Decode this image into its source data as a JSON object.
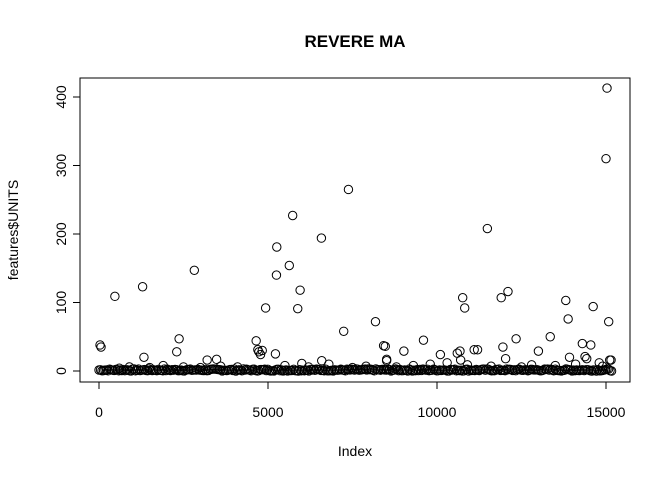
{
  "chart_data": {
    "type": "scatter",
    "title": "REVERE MA",
    "xlabel": "Index",
    "ylabel": "features$UNITS",
    "xlim": [
      0,
      15200
    ],
    "ylim": [
      0,
      420
    ],
    "x_ticks": [
      "0",
      "5000",
      "10000",
      "15000"
    ],
    "x_tick_values": [
      0,
      5000,
      10000,
      15000
    ],
    "y_ticks": [
      "0",
      "100",
      "200",
      "300",
      "400"
    ],
    "y_tick_values": [
      0,
      100,
      200,
      300,
      400
    ],
    "marker": "open-circle",
    "color": "#000000",
    "grid": false,
    "series": [
      {
        "points": [
          [
            30,
            38
          ],
          [
            60,
            35
          ],
          [
            470,
            109
          ],
          [
            1290,
            123
          ],
          [
            1330,
            20
          ],
          [
            2300,
            28
          ],
          [
            2370,
            47
          ],
          [
            2820,
            147
          ],
          [
            3200,
            16
          ],
          [
            3480,
            17
          ],
          [
            4650,
            44
          ],
          [
            4700,
            31
          ],
          [
            4730,
            28
          ],
          [
            4780,
            24
          ],
          [
            4830,
            30
          ],
          [
            4930,
            92
          ],
          [
            5220,
            25
          ],
          [
            5250,
            140
          ],
          [
            5260,
            181
          ],
          [
            5630,
            154
          ],
          [
            5730,
            227
          ],
          [
            5880,
            91
          ],
          [
            5950,
            118
          ],
          [
            6000,
            11
          ],
          [
            6580,
            194
          ],
          [
            6590,
            15
          ],
          [
            7240,
            58
          ],
          [
            7380,
            265
          ],
          [
            8180,
            72
          ],
          [
            8420,
            37
          ],
          [
            8470,
            36
          ],
          [
            8510,
            17
          ],
          [
            8510,
            15
          ],
          [
            9020,
            29
          ],
          [
            9600,
            45
          ],
          [
            10100,
            24
          ],
          [
            10600,
            26
          ],
          [
            10680,
            29
          ],
          [
            10700,
            16
          ],
          [
            10760,
            107
          ],
          [
            10820,
            92
          ],
          [
            11100,
            31
          ],
          [
            11200,
            31
          ],
          [
            11490,
            208
          ],
          [
            11900,
            107
          ],
          [
            11950,
            35
          ],
          [
            12030,
            18
          ],
          [
            12100,
            116
          ],
          [
            12340,
            47
          ],
          [
            13000,
            29
          ],
          [
            13350,
            50
          ],
          [
            13810,
            103
          ],
          [
            13880,
            76
          ],
          [
            13920,
            20
          ],
          [
            14300,
            40
          ],
          [
            14380,
            21
          ],
          [
            14430,
            18
          ],
          [
            14550,
            38
          ],
          [
            14620,
            94
          ],
          [
            14800,
            12
          ],
          [
            15000,
            310
          ],
          [
            15030,
            413
          ],
          [
            15080,
            72
          ],
          [
            15110,
            16
          ],
          [
            15150,
            16
          ],
          [
            600,
            4
          ],
          [
            900,
            6
          ],
          [
            1500,
            5
          ],
          [
            1900,
            8
          ],
          [
            2500,
            6
          ],
          [
            3000,
            5
          ],
          [
            3600,
            7
          ],
          [
            4100,
            6
          ],
          [
            5500,
            8
          ],
          [
            6200,
            6
          ],
          [
            6800,
            10
          ],
          [
            7500,
            5
          ],
          [
            7900,
            7
          ],
          [
            8800,
            6
          ],
          [
            9300,
            8
          ],
          [
            9800,
            10
          ],
          [
            10300,
            12
          ],
          [
            10900,
            9
          ],
          [
            11600,
            7
          ],
          [
            12500,
            6
          ],
          [
            12800,
            9
          ],
          [
            13500,
            8
          ],
          [
            14100,
            10
          ],
          [
            14900,
            7
          ]
        ],
        "dense_band": {
          "x_range": [
            0,
            15200
          ],
          "y_range": [
            0,
            3
          ]
        }
      }
    ]
  }
}
